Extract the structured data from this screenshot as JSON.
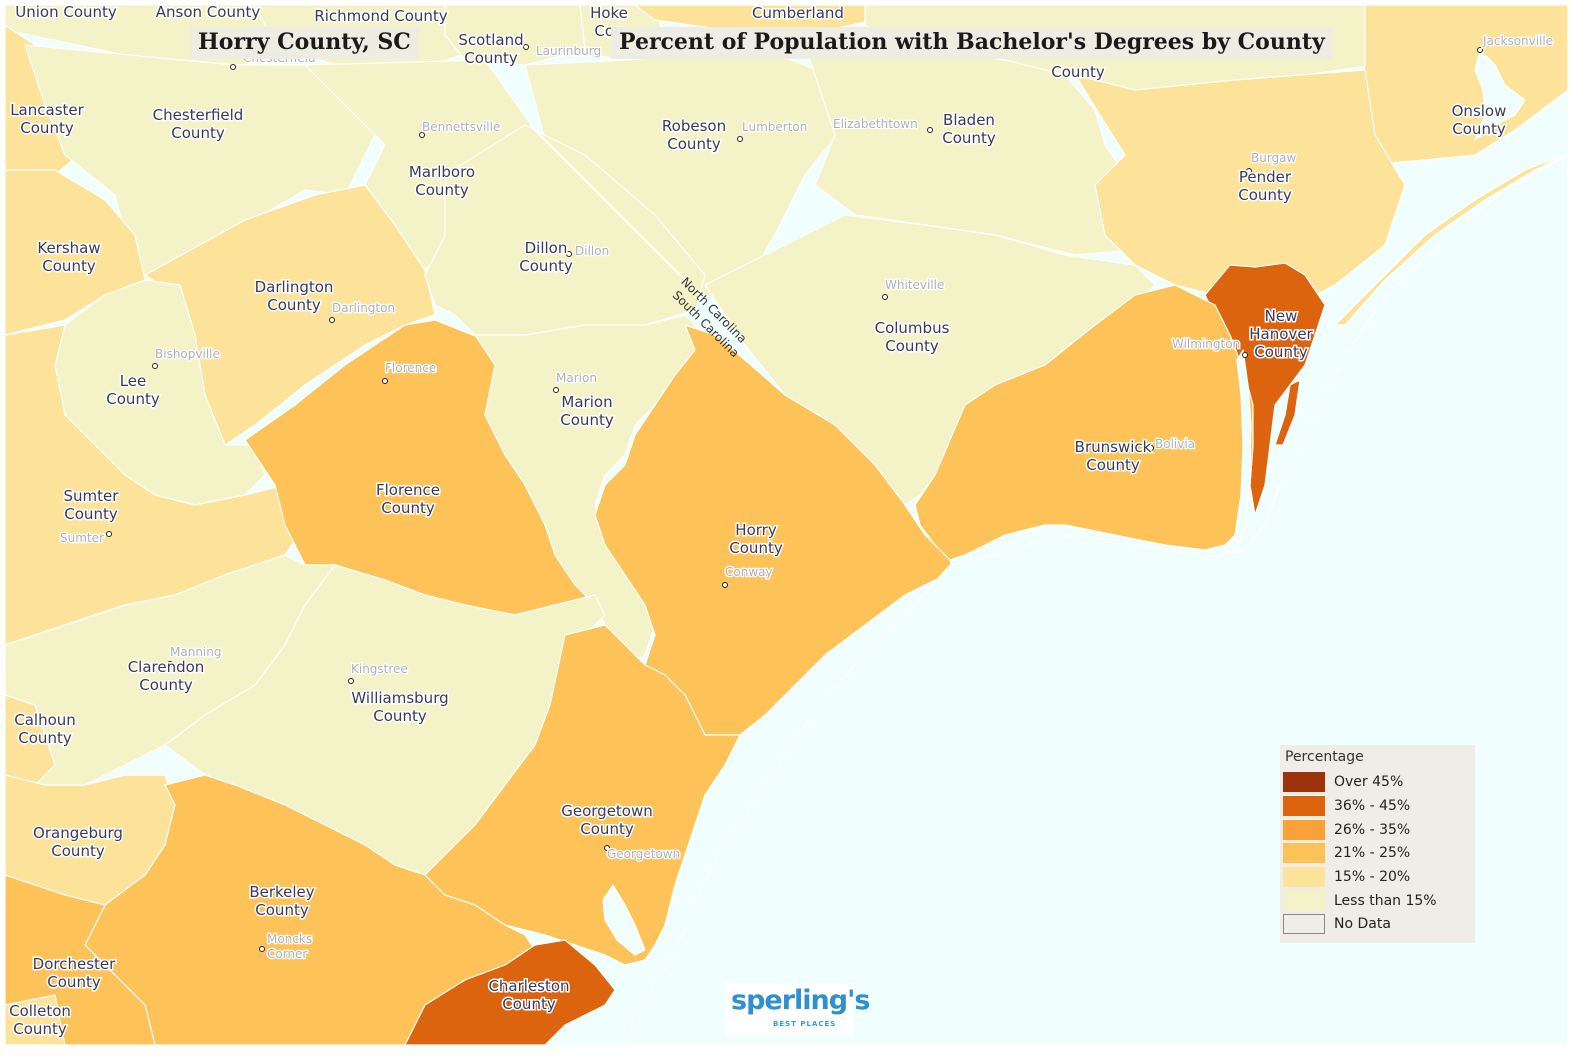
{
  "title_left": "Horry County, SC",
  "title_right": "Percent of Population with Bachelor's Degrees by County",
  "colors": {
    "ocean": "#f0fefe",
    "lt15": "#f4f2c7",
    "p15_20": "#fde29a",
    "p21_25": "#fdc358",
    "p26_35": "#fba13a",
    "p36_45": "#dd640f",
    "over45": "#9c330a",
    "border": "#ffffff"
  },
  "legend": {
    "title": "Percentage",
    "items": [
      {
        "label": "Over 45%",
        "color": "#9c330a"
      },
      {
        "label": "36% - 45%",
        "color": "#dd640f"
      },
      {
        "label": "26% - 35%",
        "color": "#fba13a"
      },
      {
        "label": "21% - 25%",
        "color": "#fdc358"
      },
      {
        "label": "15% - 20%",
        "color": "#fde29a"
      },
      {
        "label": "Less than 15%",
        "color": "#f4f2c7"
      },
      {
        "label": "No Data",
        "color": "#efede6"
      }
    ]
  },
  "state_line": {
    "north": "North Carolina",
    "south": "South Carolina"
  },
  "counties": [
    {
      "key": "union",
      "lines": [
        "Union County"
      ],
      "category": "p26_35"
    },
    {
      "key": "anson",
      "lines": [
        "Anson County"
      ],
      "category": "lt15"
    },
    {
      "key": "richmond",
      "lines": [
        "Richmond County"
      ],
      "category": "lt15"
    },
    {
      "key": "scotland",
      "lines": [
        "Scotland",
        "County"
      ],
      "category": "lt15"
    },
    {
      "key": "hoke",
      "lines": [
        "Hoke",
        "Cou"
      ],
      "category": "lt15"
    },
    {
      "key": "cumberland",
      "lines": [
        "Cumberland"
      ],
      "category": "p15_20"
    },
    {
      "key": "sampson",
      "lines": [
        "County"
      ],
      "category": "lt15"
    },
    {
      "key": "lancaster",
      "lines": [
        "Lancaster",
        "County"
      ],
      "category": "p15_20"
    },
    {
      "key": "chesterfield",
      "lines": [
        "Chesterfield",
        "County"
      ],
      "category": "lt15"
    },
    {
      "key": "marlboro",
      "lines": [
        "Marlboro",
        "County"
      ],
      "category": "lt15"
    },
    {
      "key": "robeson",
      "lines": [
        "Robeson",
        "County"
      ],
      "category": "lt15"
    },
    {
      "key": "bladen",
      "lines": [
        "Bladen",
        "County"
      ],
      "category": "lt15"
    },
    {
      "key": "pender",
      "lines": [
        "Pender",
        "County"
      ],
      "category": "p15_20"
    },
    {
      "key": "onslow",
      "lines": [
        "Onslow",
        "County"
      ],
      "category": "p15_20"
    },
    {
      "key": "kershaw",
      "lines": [
        "Kershaw",
        "County"
      ],
      "category": "p15_20"
    },
    {
      "key": "darlington",
      "lines": [
        "Darlington",
        "County"
      ],
      "category": "p15_20"
    },
    {
      "key": "dillon",
      "lines": [
        "Dillon",
        "County"
      ],
      "category": "lt15"
    },
    {
      "key": "columbus",
      "lines": [
        "Columbus",
        "County"
      ],
      "category": "lt15"
    },
    {
      "key": "newhanover",
      "lines": [
        "New",
        "Hanover",
        "County"
      ],
      "category": "p36_45"
    },
    {
      "key": "lee",
      "lines": [
        "Lee",
        "County"
      ],
      "category": "lt15"
    },
    {
      "key": "marion",
      "lines": [
        "Marion",
        "County"
      ],
      "category": "lt15"
    },
    {
      "key": "florence",
      "lines": [
        "Florence",
        "County"
      ],
      "category": "p21_25"
    },
    {
      "key": "brunswick",
      "lines": [
        "Brunswick",
        "County"
      ],
      "category": "p21_25"
    },
    {
      "key": "sumter",
      "lines": [
        "Sumter",
        "County"
      ],
      "category": "p15_20"
    },
    {
      "key": "horry",
      "lines": [
        "Horry",
        "County"
      ],
      "category": "p21_25"
    },
    {
      "key": "clarendon",
      "lines": [
        "Clarendon",
        "County"
      ],
      "category": "lt15"
    },
    {
      "key": "williamsburg",
      "lines": [
        "Williamsburg",
        "County"
      ],
      "category": "lt15"
    },
    {
      "key": "calhoun",
      "lines": [
        "Calhoun",
        "County"
      ],
      "category": "p15_20"
    },
    {
      "key": "georgetown",
      "lines": [
        "Georgetown",
        "County"
      ],
      "category": "p21_25"
    },
    {
      "key": "orangeburg",
      "lines": [
        "Orangeburg",
        "County"
      ],
      "category": "p15_20"
    },
    {
      "key": "berkeley",
      "lines": [
        "Berkeley",
        "County"
      ],
      "category": "p21_25"
    },
    {
      "key": "dorchester",
      "lines": [
        "Dorchester",
        "County"
      ],
      "category": "p21_25"
    },
    {
      "key": "charleston",
      "lines": [
        "Charleston",
        "County"
      ],
      "category": "p36_45"
    },
    {
      "key": "colleton",
      "lines": [
        "Colleton",
        "County"
      ],
      "category": "p15_20"
    }
  ],
  "cities": [
    {
      "key": "chesterfield_town",
      "name": "Chesterfield"
    },
    {
      "key": "laurinburg",
      "name": "Laurinburg"
    },
    {
      "key": "bennettsville",
      "name": "Bennettsville"
    },
    {
      "key": "lumberton",
      "name": "Lumberton"
    },
    {
      "key": "elizabethtown",
      "name": "Elizabethtown"
    },
    {
      "key": "jacksonville",
      "name": "Jacksonville"
    },
    {
      "key": "burgaw",
      "name": "Burgaw"
    },
    {
      "key": "dillon_town",
      "name": "Dillon"
    },
    {
      "key": "darlington_town",
      "name": "Darlington"
    },
    {
      "key": "whiteville",
      "name": "Whiteville"
    },
    {
      "key": "bishopville",
      "name": "Bishopville"
    },
    {
      "key": "florence_town",
      "name": "Florence"
    },
    {
      "key": "marion_town",
      "name": "Marion"
    },
    {
      "key": "wilmington",
      "name": "Wilmington"
    },
    {
      "key": "bolivia",
      "name": "Bolivia"
    },
    {
      "key": "sumter_town",
      "name": "Sumter"
    },
    {
      "key": "conway",
      "name": "Conway"
    },
    {
      "key": "manning",
      "name": "Manning"
    },
    {
      "key": "kingstree",
      "name": "Kingstree"
    },
    {
      "key": "georgetown_town",
      "name": "Georgetown"
    },
    {
      "key": "moncks_corner",
      "name": "Moncks Corner",
      "lines": [
        "Moncks",
        "Corner"
      ]
    }
  ],
  "logo": {
    "main": "sperling's",
    "sub": "BEST PLACES"
  }
}
